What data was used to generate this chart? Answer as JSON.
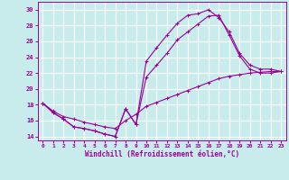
{
  "xlabel": "Windchill (Refroidissement éolien,°C)",
  "ylabel": "",
  "bg_color": "#c8ecec",
  "grid_color": "#ffffff",
  "line_color": "#990099",
  "xlim": [
    -0.5,
    23.5
  ],
  "ylim": [
    13.5,
    31
  ],
  "xticks": [
    0,
    1,
    2,
    3,
    4,
    5,
    6,
    7,
    8,
    9,
    10,
    11,
    12,
    13,
    14,
    15,
    16,
    17,
    18,
    19,
    20,
    21,
    22,
    23
  ],
  "yticks": [
    14,
    16,
    18,
    20,
    22,
    24,
    26,
    28,
    30
  ],
  "line1_x": [
    0,
    1,
    2,
    3,
    4,
    5,
    6,
    7,
    8,
    9,
    10,
    11,
    12,
    13,
    14,
    15,
    16,
    17,
    18,
    19,
    20,
    21,
    22,
    23
  ],
  "line1_y": [
    18.2,
    17.0,
    16.2,
    15.2,
    15.0,
    14.7,
    14.3,
    14.0,
    17.5,
    15.5,
    23.5,
    25.2,
    26.8,
    28.3,
    29.3,
    29.5,
    30.0,
    29.0,
    27.2,
    24.5,
    23.0,
    22.5,
    22.5,
    22.2
  ],
  "line2_x": [
    0,
    1,
    2,
    3,
    4,
    5,
    6,
    7,
    8,
    9,
    10,
    11,
    12,
    13,
    14,
    15,
    16,
    17,
    18,
    19,
    20,
    21,
    22,
    23
  ],
  "line2_y": [
    18.2,
    17.0,
    16.2,
    15.2,
    15.0,
    14.7,
    14.3,
    14.0,
    17.5,
    15.5,
    21.5,
    23.0,
    24.5,
    26.2,
    27.2,
    28.2,
    29.2,
    29.3,
    26.8,
    24.2,
    22.5,
    22.0,
    22.0,
    22.2
  ],
  "line3_x": [
    0,
    1,
    2,
    3,
    4,
    5,
    6,
    7,
    8,
    9,
    10,
    11,
    12,
    13,
    14,
    15,
    16,
    17,
    18,
    19,
    20,
    21,
    22,
    23
  ],
  "line3_y": [
    18.2,
    17.2,
    16.5,
    16.2,
    15.8,
    15.5,
    15.2,
    15.0,
    16.0,
    16.8,
    17.8,
    18.3,
    18.8,
    19.3,
    19.8,
    20.3,
    20.8,
    21.3,
    21.6,
    21.8,
    22.0,
    22.1,
    22.2,
    22.2
  ]
}
